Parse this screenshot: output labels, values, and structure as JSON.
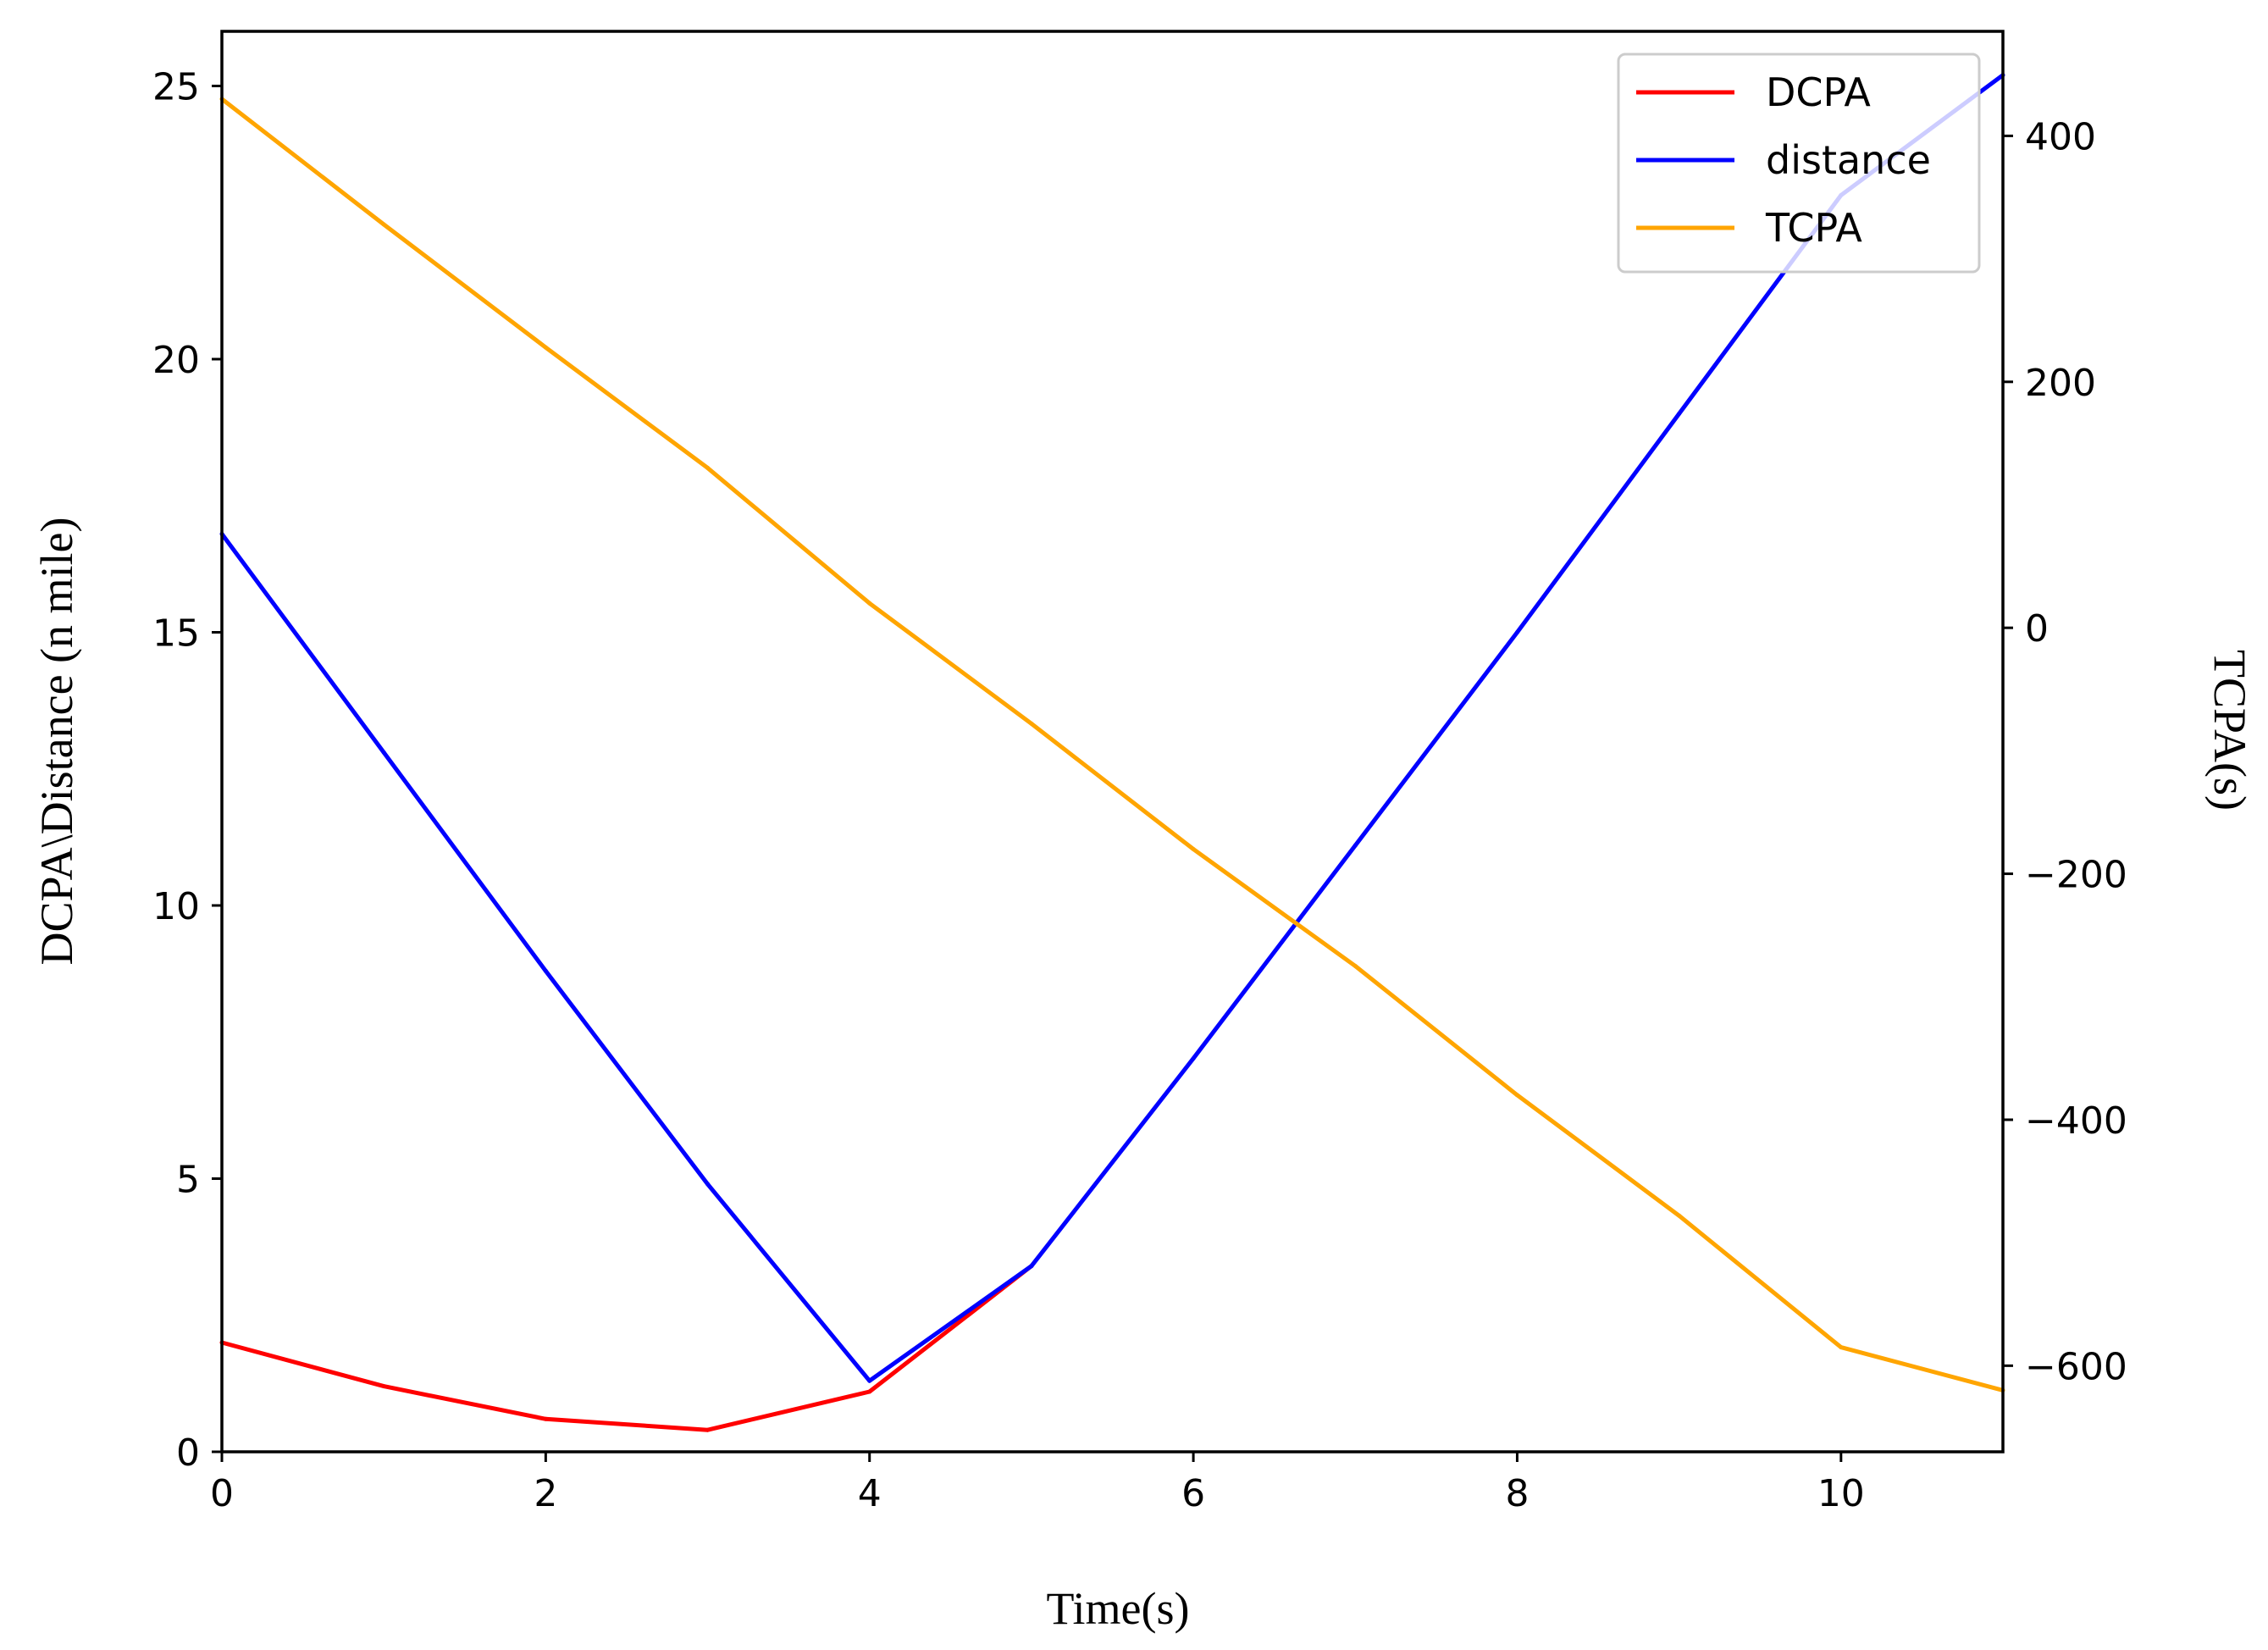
{
  "chart_data": {
    "type": "line",
    "title": "",
    "xlabel": "Time(s)",
    "ylabel_left": "DCPA\\Distance (n mile)",
    "ylabel_right": "TCPA(s)",
    "xlim": [
      0,
      11
    ],
    "ylim_left": [
      0,
      26
    ],
    "ylim_right": [
      -670,
      485
    ],
    "x_ticks": [
      "0",
      "2",
      "4",
      "6",
      "8",
      "10"
    ],
    "y_left_ticks": [
      "0",
      "5",
      "10",
      "15",
      "20",
      "25"
    ],
    "y_right_ticks": [
      "−600",
      "−400",
      "−200",
      "0",
      "200",
      "400"
    ],
    "legend_position": "top-right",
    "colors": {
      "DCPA": "#ff0000",
      "distance": "#0000ff",
      "TCPA": "#ffa500"
    },
    "series": [
      {
        "name": "DCPA",
        "axis": "left",
        "x": [
          0,
          1,
          2,
          3,
          4,
          5
        ],
        "values": [
          2.0,
          1.2,
          0.6,
          0.4,
          1.1,
          3.4
        ]
      },
      {
        "name": "distance",
        "axis": "left",
        "x": [
          0,
          1,
          2,
          3,
          4,
          5,
          6,
          7,
          8,
          9,
          10,
          11
        ],
        "values": [
          16.8,
          12.8,
          8.8,
          4.9,
          1.3,
          3.4,
          7.2,
          11.1,
          15.0,
          19.0,
          23.0,
          25.2
        ]
      },
      {
        "name": "TCPA",
        "axis": "right",
        "x": [
          0,
          1,
          2,
          3,
          4,
          5,
          6,
          7,
          8,
          9,
          10,
          11
        ],
        "values": [
          430,
          328,
          228,
          130,
          20,
          -78,
          -180,
          -275,
          -380,
          -478,
          -585,
          -620
        ]
      }
    ]
  }
}
